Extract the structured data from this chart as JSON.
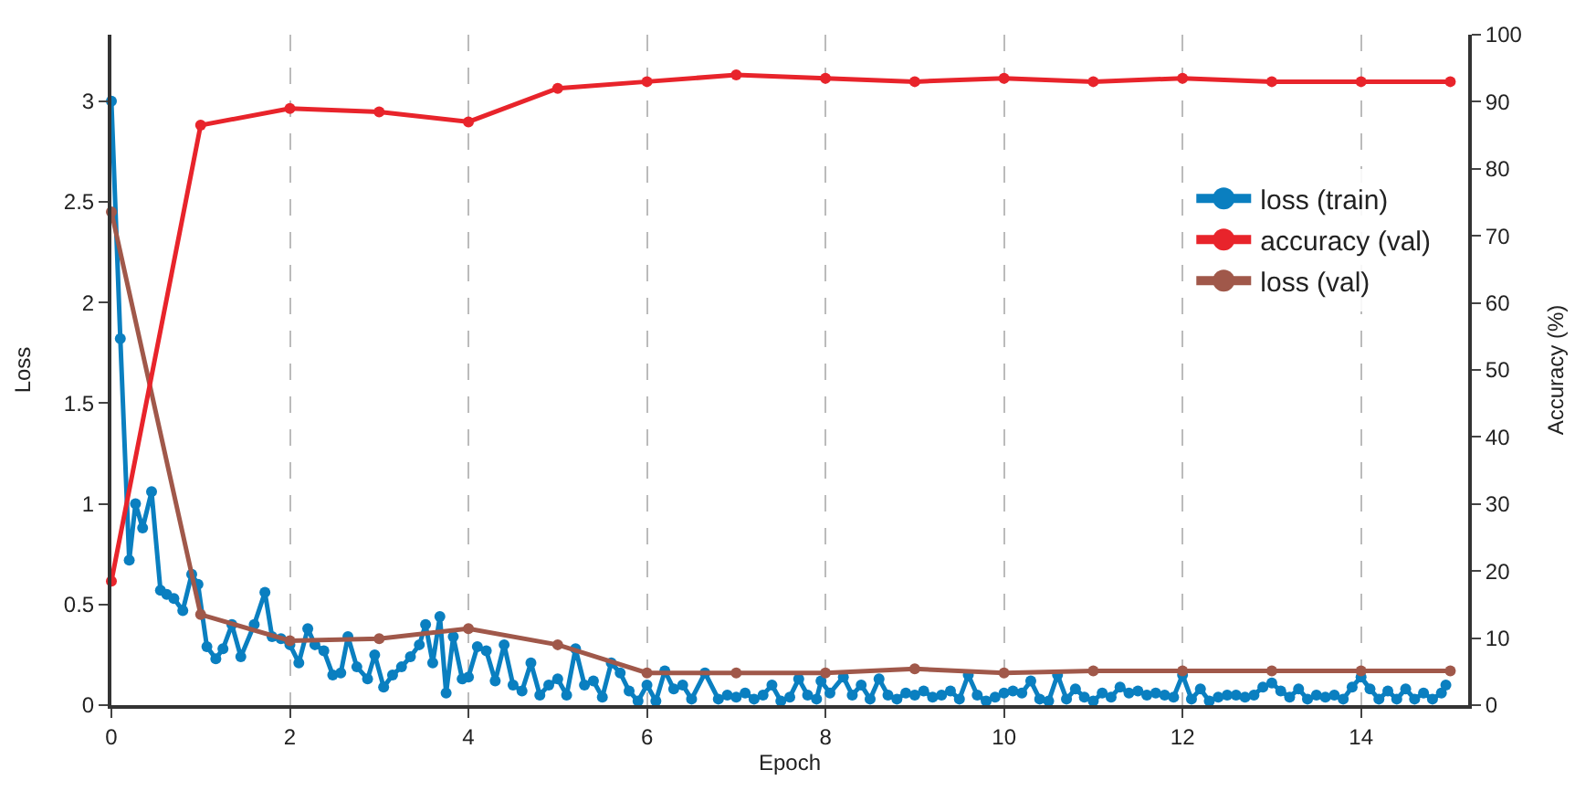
{
  "chart_data": {
    "type": "line",
    "xlabel": "Epoch",
    "ylabel": "Loss",
    "y2label": "Accuracy (%)",
    "xlim": [
      0,
      15.2
    ],
    "xticks": [
      0,
      2,
      4,
      6,
      8,
      10,
      12,
      14
    ],
    "ylim": [
      0,
      3.33
    ],
    "yticks": [
      0,
      0.5,
      1,
      1.5,
      2,
      2.5,
      3
    ],
    "y2lim": [
      0,
      100
    ],
    "y2ticks": [
      0,
      10,
      20,
      30,
      40,
      50,
      60,
      70,
      80,
      90,
      100
    ],
    "grid": "x",
    "legend": "top right",
    "marker": "circle",
    "line_style": "solid",
    "series": [
      {
        "name": "loss (train)",
        "color": "#0a7fc0",
        "x": [
          0,
          0.1,
          0.2,
          0.27,
          0.35,
          0.45,
          0.55,
          0.62,
          0.7,
          0.8,
          0.9,
          0.97,
          1.07,
          1.17,
          1.25,
          1.35,
          1.45,
          1.6,
          1.72,
          1.8,
          1.9,
          2.0,
          2.1,
          2.2,
          2.28,
          2.38,
          2.48,
          2.57,
          2.65,
          2.75,
          2.87,
          2.95,
          3.05,
          3.15,
          3.25,
          3.35,
          3.45,
          3.52,
          3.6,
          3.68,
          3.75,
          3.83,
          3.93,
          4.0,
          4.1,
          4.2,
          4.3,
          4.4,
          4.5,
          4.6,
          4.7,
          4.8,
          4.9,
          5.0,
          5.1,
          5.2,
          5.3,
          5.4,
          5.5,
          5.6,
          5.7,
          5.8,
          5.9,
          6.0,
          6.1,
          6.2,
          6.3,
          6.4,
          6.5,
          6.65,
          6.8,
          6.9,
          7.0,
          7.1,
          7.2,
          7.3,
          7.4,
          7.5,
          7.6,
          7.7,
          7.8,
          7.9,
          7.95,
          8.05,
          8.2,
          8.3,
          8.4,
          8.5,
          8.6,
          8.7,
          8.8,
          8.9,
          9.0,
          9.1,
          9.2,
          9.3,
          9.4,
          9.5,
          9.6,
          9.7,
          9.8,
          9.9,
          10.0,
          10.1,
          10.2,
          10.3,
          10.4,
          10.5,
          10.6,
          10.7,
          10.8,
          10.9,
          11.0,
          11.1,
          11.2,
          11.3,
          11.4,
          11.5,
          11.6,
          11.7,
          11.8,
          11.9,
          12.0,
          12.1,
          12.2,
          12.3,
          12.4,
          12.5,
          12.6,
          12.7,
          12.8,
          12.9,
          13.0,
          13.1,
          13.2,
          13.3,
          13.4,
          13.5,
          13.6,
          13.7,
          13.8,
          13.9,
          14.0,
          14.1,
          14.2,
          14.3,
          14.4,
          14.5,
          14.6,
          14.7,
          14.8,
          14.9,
          14.95
        ],
        "values": [
          3.0,
          1.82,
          0.72,
          1.0,
          0.88,
          1.06,
          0.57,
          0.55,
          0.53,
          0.47,
          0.65,
          0.6,
          0.29,
          0.23,
          0.28,
          0.4,
          0.24,
          0.4,
          0.56,
          0.34,
          0.33,
          0.3,
          0.21,
          0.38,
          0.3,
          0.27,
          0.15,
          0.16,
          0.34,
          0.19,
          0.13,
          0.25,
          0.09,
          0.15,
          0.19,
          0.24,
          0.3,
          0.4,
          0.21,
          0.44,
          0.06,
          0.34,
          0.13,
          0.14,
          0.29,
          0.27,
          0.12,
          0.3,
          0.1,
          0.07,
          0.21,
          0.05,
          0.1,
          0.13,
          0.05,
          0.28,
          0.1,
          0.12,
          0.04,
          0.21,
          0.16,
          0.07,
          0.02,
          0.1,
          0.02,
          0.17,
          0.08,
          0.1,
          0.03,
          0.16,
          0.03,
          0.05,
          0.04,
          0.06,
          0.03,
          0.05,
          0.1,
          0.02,
          0.04,
          0.13,
          0.05,
          0.03,
          0.12,
          0.06,
          0.14,
          0.05,
          0.1,
          0.03,
          0.13,
          0.05,
          0.03,
          0.06,
          0.05,
          0.07,
          0.04,
          0.05,
          0.07,
          0.03,
          0.15,
          0.05,
          0.02,
          0.04,
          0.06,
          0.07,
          0.06,
          0.12,
          0.03,
          0.02,
          0.15,
          0.03,
          0.08,
          0.04,
          0.02,
          0.06,
          0.04,
          0.09,
          0.06,
          0.07,
          0.05,
          0.06,
          0.05,
          0.04,
          0.15,
          0.03,
          0.08,
          0.02,
          0.04,
          0.05,
          0.05,
          0.04,
          0.05,
          0.09,
          0.11,
          0.07,
          0.04,
          0.08,
          0.03,
          0.05,
          0.04,
          0.05,
          0.03,
          0.09,
          0.14,
          0.08,
          0.03,
          0.07,
          0.03,
          0.08,
          0.03,
          0.06,
          0.03,
          0.06,
          0.1
        ]
      },
      {
        "name": "accuracy (val)",
        "color": "#e8242b",
        "axis": "y2",
        "x": [
          0,
          1,
          2,
          3,
          4,
          5,
          6,
          7,
          8,
          9,
          10,
          11,
          12,
          13,
          14,
          15
        ],
        "values": [
          18.5,
          86.5,
          89,
          88.5,
          87,
          92,
          93,
          94,
          93.5,
          93,
          93.5,
          93,
          93.5,
          93,
          93,
          93
        ]
      },
      {
        "name": "loss (val)",
        "color": "#a0584a",
        "x": [
          0,
          1,
          2,
          3,
          4,
          5,
          6,
          7,
          8,
          9,
          10,
          11,
          12,
          13,
          14,
          15
        ],
        "values": [
          2.45,
          0.45,
          0.32,
          0.33,
          0.38,
          0.3,
          0.16,
          0.16,
          0.16,
          0.18,
          0.16,
          0.17,
          0.17,
          0.17,
          0.17,
          0.17
        ]
      }
    ]
  }
}
